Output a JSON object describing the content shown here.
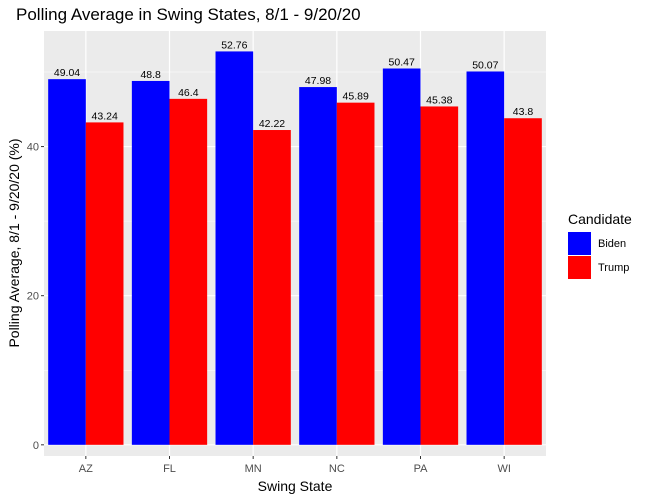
{
  "chart_data": {
    "type": "bar",
    "title": "Polling Average in Swing States, 8/1 - 9/20/20",
    "xlabel": "Swing State",
    "ylabel": "Polling Average, 8/1 - 9/20/20 (%)",
    "categories": [
      "AZ",
      "FL",
      "MN",
      "NC",
      "PA",
      "WI"
    ],
    "series": [
      {
        "name": "Biden",
        "color": "#0000ff",
        "values": [
          49.04,
          48.8,
          52.76,
          47.98,
          50.47,
          50.07
        ]
      },
      {
        "name": "Trump",
        "color": "#ff0000",
        "values": [
          43.24,
          46.4,
          42.22,
          45.89,
          45.38,
          43.8
        ]
      }
    ],
    "ylim": [
      -1.5,
      55.5
    ],
    "yticks": [
      0,
      20,
      40
    ],
    "grid": true,
    "legend": {
      "title": "Candidate",
      "position": "right"
    },
    "panel_background": "#ebebeb"
  }
}
